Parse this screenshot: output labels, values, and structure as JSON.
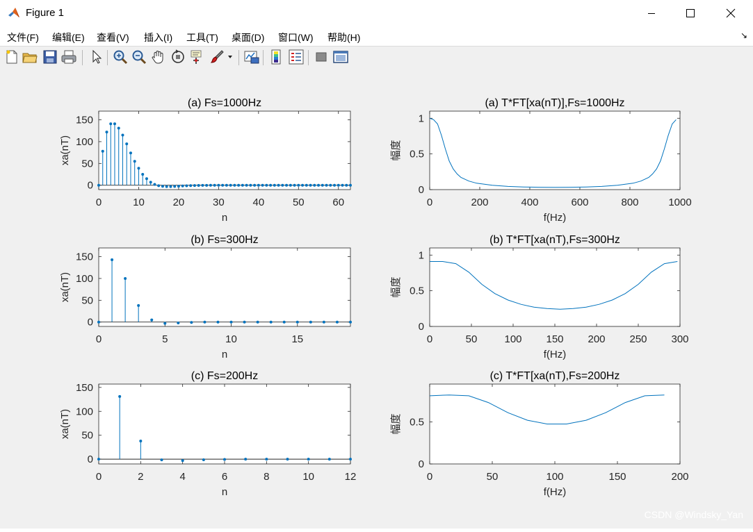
{
  "window": {
    "title": "Figure 1",
    "controls": [
      "minimize",
      "maximize",
      "close"
    ]
  },
  "menu": {
    "items": [
      "文件(F)",
      "编辑(E)",
      "查看(V)",
      "插入(I)",
      "工具(T)",
      "桌面(D)",
      "窗口(W)",
      "帮助(H)"
    ],
    "dock_arrow": "↘"
  },
  "toolbar": {
    "buttons": [
      "new-figure-icon",
      "open-folder-icon",
      "save-icon",
      "print-icon",
      "pointer-icon",
      "zoom-in-icon",
      "zoom-out-icon",
      "pan-hand-icon",
      "rotate-3d-icon",
      "data-cursor-icon",
      "brush-icon",
      "brush-dropdown-icon",
      "link-plot-icon",
      "colorbar-icon",
      "legend-icon",
      "hide-plot-tools-icon",
      "show-plot-tools-icon"
    ]
  },
  "watermark": "CSDN @Windsky_Yan",
  "colors": {
    "line": "#0072bd",
    "axes_bg": "#ffffff",
    "figure_bg": "#f0f0f0"
  },
  "chart_data": [
    {
      "type": "stem",
      "title": "(a) Fs=1000Hz",
      "xlabel": "n",
      "ylabel": "xa(nT)",
      "xlim": [
        0,
        63
      ],
      "ylim": [
        -10,
        170
      ],
      "xticks": [
        0,
        10,
        20,
        30,
        40,
        50,
        60
      ],
      "yticks": [
        0,
        50,
        100,
        150
      ],
      "x": [
        0,
        1,
        2,
        3,
        4,
        5,
        6,
        7,
        8,
        9,
        10,
        11,
        12,
        13,
        14,
        15,
        16,
        17,
        18,
        19,
        20,
        21,
        22,
        23,
        24,
        25,
        26,
        27,
        28,
        29,
        30,
        31,
        32,
        33,
        34,
        35,
        36,
        37,
        38,
        39,
        40,
        41,
        42,
        43,
        44,
        45,
        46,
        47,
        48,
        49,
        50,
        51,
        52,
        53,
        54,
        55,
        56,
        57,
        58,
        59,
        60,
        61,
        62,
        63
      ],
      "y": [
        0,
        78,
        122,
        141,
        141,
        131,
        115,
        95,
        74,
        55,
        39,
        25,
        15,
        7,
        2,
        -1,
        -2.5,
        -3,
        -3,
        -2.6,
        -2.2,
        -1.7,
        -1.2,
        -0.9,
        -0.6,
        -0.4,
        -0.3,
        -0.2,
        -0.1,
        0,
        0,
        0,
        0,
        0,
        0,
        0,
        0,
        0,
        0,
        0,
        0,
        0,
        0,
        0,
        0,
        0,
        0,
        0,
        0,
        0,
        0,
        0,
        0,
        0,
        0,
        0,
        0,
        0,
        0,
        0,
        0,
        0,
        0,
        0
      ]
    },
    {
      "type": "line",
      "title": "(a) T*FT[xa(nT)],Fs=1000Hz",
      "xlabel": "f(Hz)",
      "ylabel": "幅度",
      "xlim": [
        0,
        1000
      ],
      "ylim": [
        0,
        1.1
      ],
      "xticks": [
        0,
        200,
        400,
        600,
        800,
        1000
      ],
      "yticks": [
        0,
        0.5,
        1
      ],
      "x": [
        0,
        15.6,
        31.3,
        46.9,
        62.5,
        78.1,
        93.8,
        109.4,
        125,
        156.3,
        187.5,
        250,
        312.5,
        375,
        437.5,
        500,
        562.5,
        625,
        687.5,
        750,
        812.5,
        843.8,
        875,
        890.6,
        906.3,
        921.9,
        937.5,
        953.1,
        968.8,
        984.4
      ],
      "y": [
        1,
        0.98,
        0.92,
        0.76,
        0.57,
        0.4,
        0.29,
        0.22,
        0.17,
        0.12,
        0.09,
        0.06,
        0.045,
        0.037,
        0.033,
        0.031,
        0.033,
        0.037,
        0.045,
        0.06,
        0.09,
        0.12,
        0.17,
        0.22,
        0.29,
        0.4,
        0.57,
        0.76,
        0.92,
        0.98
      ]
    },
    {
      "type": "stem",
      "title": "(b) Fs=300Hz",
      "xlabel": "n",
      "ylabel": "xa(nT)",
      "xlim": [
        0,
        19
      ],
      "ylim": [
        -10,
        170
      ],
      "xticks": [
        0,
        5,
        10,
        15
      ],
      "yticks": [
        0,
        50,
        100,
        150
      ],
      "x": [
        0,
        1,
        2,
        3,
        4,
        5,
        6,
        7,
        8,
        9,
        10,
        11,
        12,
        13,
        14,
        15,
        16,
        17,
        18,
        19
      ],
      "y": [
        0,
        143,
        100,
        38,
        5,
        -3,
        -2,
        -0.8,
        0,
        0,
        0,
        0,
        0,
        0,
        0,
        0,
        0,
        0,
        0,
        0
      ]
    },
    {
      "type": "line",
      "title": "(b) T*FT[xa(nT),Fs=300Hz",
      "xlabel": "f(Hz)",
      "ylabel": "幅度",
      "xlim": [
        0,
        300
      ],
      "ylim": [
        0,
        1.1
      ],
      "xticks": [
        0,
        50,
        100,
        150,
        200,
        250,
        300
      ],
      "yticks": [
        0,
        0.5,
        1
      ],
      "x": [
        0,
        15.6,
        31.3,
        46.9,
        62.5,
        78.1,
        93.8,
        109.4,
        125,
        140.6,
        156.3,
        171.9,
        187.5,
        203.1,
        218.8,
        234.4,
        250,
        265.6,
        281.3,
        296.9
      ],
      "y": [
        0.91,
        0.91,
        0.88,
        0.76,
        0.59,
        0.46,
        0.37,
        0.31,
        0.27,
        0.25,
        0.24,
        0.25,
        0.27,
        0.31,
        0.37,
        0.46,
        0.59,
        0.76,
        0.88,
        0.91
      ]
    },
    {
      "type": "stem",
      "title": "(c) Fs=200Hz",
      "xlabel": "n",
      "ylabel": "xa(nT)",
      "xlim": [
        0,
        12
      ],
      "ylim": [
        -10,
        157
      ],
      "xticks": [
        0,
        2,
        4,
        6,
        8,
        10,
        12
      ],
      "yticks": [
        0,
        50,
        100,
        150
      ],
      "x": [
        0,
        1,
        2,
        3,
        4,
        5,
        6,
        7,
        8,
        9,
        10,
        11,
        12
      ],
      "y": [
        0,
        131,
        38,
        -1.5,
        -3,
        -1.3,
        -0.5,
        0,
        0,
        0,
        0,
        0,
        0
      ]
    },
    {
      "type": "line",
      "title": "(c) T*FT[xa(nT),Fs=200Hz",
      "xlabel": "f(Hz)",
      "ylabel": "幅度",
      "xlim": [
        0,
        200
      ],
      "ylim": [
        0,
        0.95
      ],
      "xticks": [
        0,
        50,
        100,
        150,
        200
      ],
      "yticks": [
        0,
        0.5
      ],
      "x": [
        0,
        15.6,
        31.3,
        46.9,
        62.5,
        78.1,
        93.8,
        109.4,
        125,
        140.6,
        156.3,
        171.9,
        187.5
      ],
      "y": [
        0.81,
        0.82,
        0.81,
        0.73,
        0.61,
        0.52,
        0.475,
        0.475,
        0.52,
        0.61,
        0.73,
        0.81,
        0.82
      ]
    }
  ]
}
